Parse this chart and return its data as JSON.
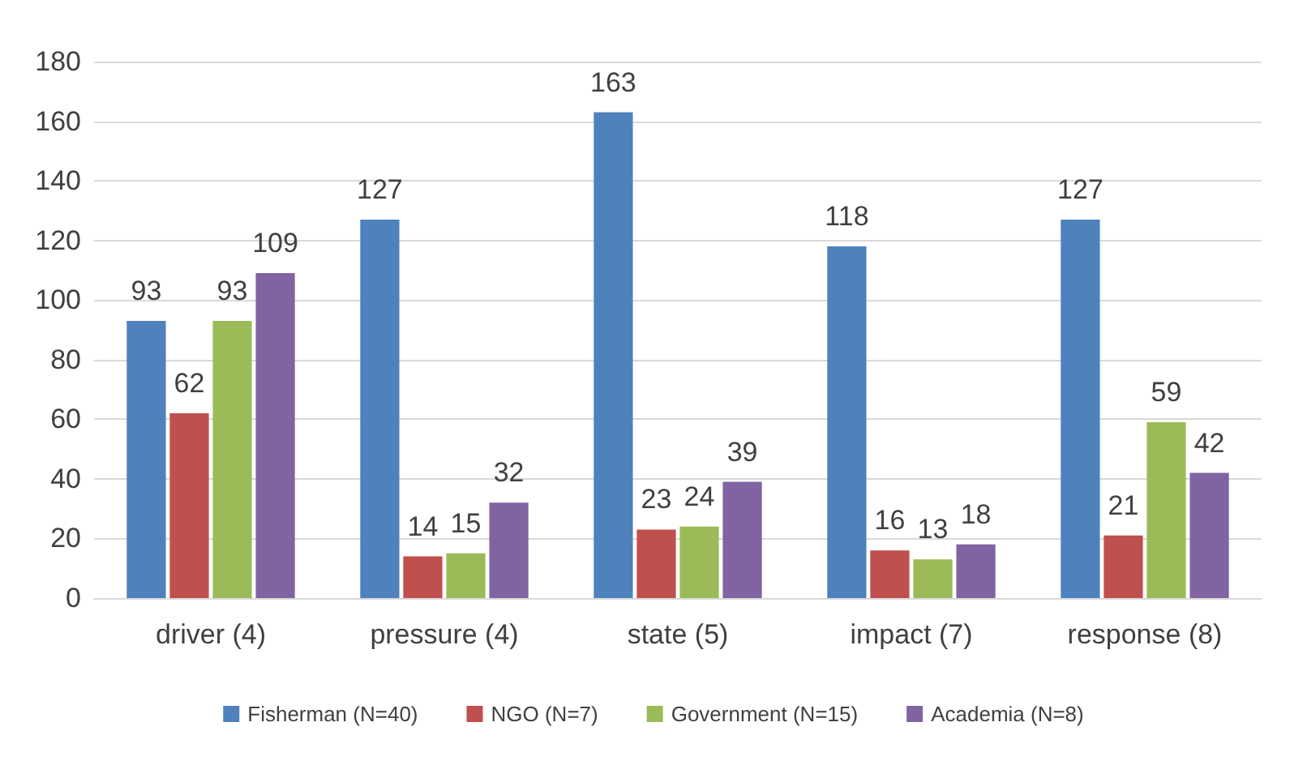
{
  "chart_data": {
    "type": "bar",
    "categories": [
      "driver (4)",
      "pressure (4)",
      "state (5)",
      "impact (7)",
      "response (8)"
    ],
    "series": [
      {
        "name": "Fisherman (N=40)",
        "color": "#4f81bd",
        "values": [
          93,
          127,
          163,
          118,
          127
        ]
      },
      {
        "name": "NGO (N=7)",
        "color": "#c0504d",
        "values": [
          62,
          14,
          23,
          16,
          21
        ]
      },
      {
        "name": "Government (N=15)",
        "color": "#9bbb59",
        "values": [
          93,
          15,
          24,
          13,
          59
        ]
      },
      {
        "name": "Academia (N=8)",
        "color": "#8064a2",
        "values": [
          109,
          32,
          39,
          18,
          42
        ]
      }
    ],
    "ylim": [
      0,
      180
    ],
    "yticks": [
      0,
      20,
      40,
      60,
      80,
      100,
      120,
      140,
      160,
      180
    ],
    "grid": "y",
    "legend": "bottom",
    "data_labels": true
  }
}
